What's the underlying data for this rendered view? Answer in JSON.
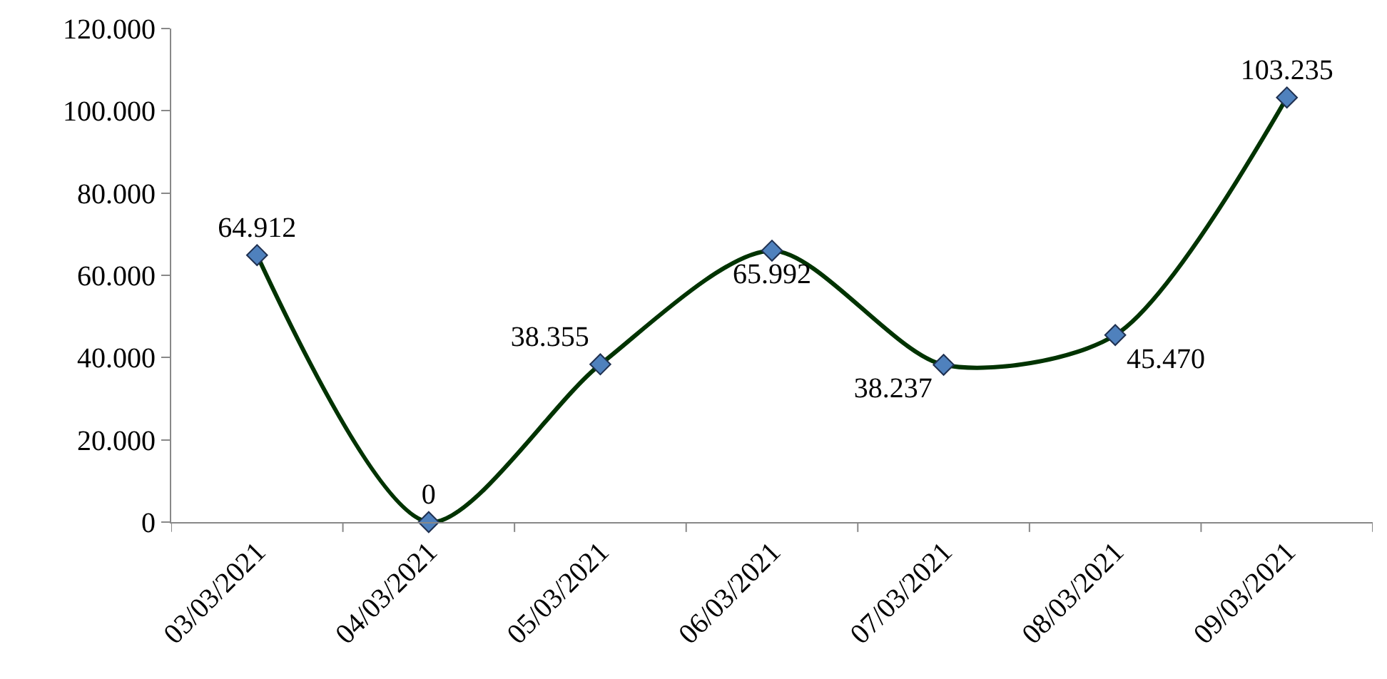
{
  "chart_data": {
    "type": "line",
    "categories": [
      "03/03/2021",
      "04/03/2021",
      "05/03/2021",
      "06/03/2021",
      "07/03/2021",
      "08/03/2021",
      "09/03/2021"
    ],
    "series": [
      {
        "color": "#003300",
        "values": [
          64912,
          0,
          38355,
          65992,
          38237,
          45470,
          103235
        ],
        "value_labels": [
          "64.912",
          "0",
          "38.355",
          "65.992",
          "38.237",
          "45.470",
          "103.235"
        ]
      }
    ],
    "ylim": [
      0,
      120000
    ],
    "yticks": [
      {
        "value": 0,
        "label": "0"
      },
      {
        "value": 20000,
        "label": "20.000"
      },
      {
        "value": 40000,
        "label": "40.000"
      },
      {
        "value": 60000,
        "label": "60.000"
      },
      {
        "value": 80000,
        "label": "80.000"
      },
      {
        "value": 100000,
        "label": "100.000"
      },
      {
        "value": 120000,
        "label": "120.000"
      }
    ],
    "marker": "diamond",
    "line_style": "solid"
  }
}
